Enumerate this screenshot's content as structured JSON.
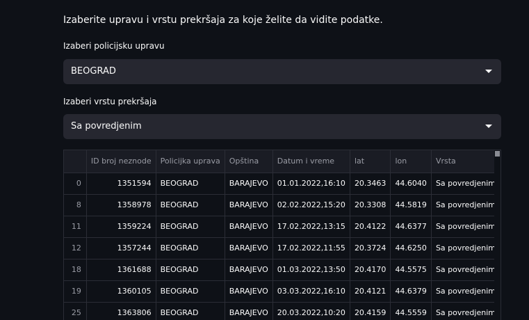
{
  "intro": "Izaberite upravu i vrstu prekršaja za koje želite da vidite podatke.",
  "police_select": {
    "label": "Izaberi policijsku upravu",
    "value": "BEOGRAD"
  },
  "violation_select": {
    "label": "Izaberi vrstu prekršaja",
    "value": "Sa povredjenim"
  },
  "table": {
    "columns": [
      "",
      "ID broj neznode",
      "Policijka uprava",
      "Opština",
      "Datum i vreme",
      "lat",
      "lon",
      "Vrsta"
    ],
    "rows": [
      [
        "0",
        "1351594",
        "BEOGRAD",
        "BARAJEVO",
        "01.01.2022,16:10",
        "20.3463",
        "44.6040",
        "Sa povredjenim"
      ],
      [
        "8",
        "1358978",
        "BEOGRAD",
        "BARAJEVO",
        "02.02.2022,15:20",
        "20.3308",
        "44.5819",
        "Sa povredjenim"
      ],
      [
        "11",
        "1359224",
        "BEOGRAD",
        "BARAJEVO",
        "17.02.2022,13:15",
        "20.4122",
        "44.6377",
        "Sa povredjenim"
      ],
      [
        "12",
        "1357244",
        "BEOGRAD",
        "BARAJEVO",
        "17.02.2022,11:55",
        "20.3724",
        "44.6250",
        "Sa povredjenim"
      ],
      [
        "18",
        "1361688",
        "BEOGRAD",
        "BARAJEVO",
        "01.03.2022,13:50",
        "20.4170",
        "44.5575",
        "Sa povredjenim"
      ],
      [
        "19",
        "1360105",
        "BEOGRAD",
        "BARAJEVO",
        "03.03.2022,16:10",
        "20.4121",
        "44.6379",
        "Sa povredjenim"
      ],
      [
        "25",
        "1363806",
        "BEOGRAD",
        "BARAJEVO",
        "20.03.2022,10:20",
        "20.4159",
        "44.5559",
        "Sa povredjenim"
      ]
    ]
  },
  "icons": {
    "dropdown": "chevron-down-icon"
  }
}
